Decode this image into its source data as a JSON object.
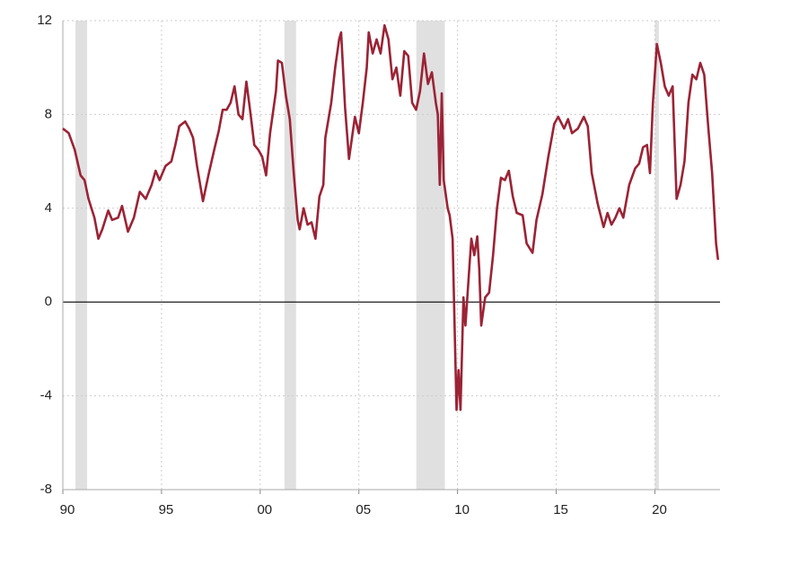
{
  "chart_data": {
    "type": "line",
    "x": [
      1990.0,
      1990.3,
      1990.6,
      1990.9,
      1991.1,
      1991.3,
      1991.6,
      1991.8,
      1992.0,
      1992.3,
      1992.5,
      1992.8,
      1993.0,
      1993.3,
      1993.6,
      1993.9,
      1994.2,
      1994.5,
      1994.7,
      1994.9,
      1995.2,
      1995.5,
      1995.7,
      1995.9,
      1996.2,
      1996.4,
      1996.6,
      1996.8,
      1997.1,
      1997.4,
      1997.7,
      1997.9,
      1998.1,
      1998.3,
      1998.5,
      1998.7,
      1998.9,
      1999.1,
      1999.3,
      1999.5,
      1999.7,
      1999.9,
      2000.1,
      2000.3,
      2000.5,
      2000.8,
      2000.9,
      2001.1,
      2001.3,
      2001.5,
      2001.7,
      2001.9,
      2002.0,
      2002.2,
      2002.4,
      2002.6,
      2002.8,
      2003.0,
      2003.2,
      2003.3,
      2003.6,
      2003.8,
      2004.0,
      2004.1,
      2004.3,
      2004.5,
      2004.8,
      2005.0,
      2005.2,
      2005.4,
      2005.5,
      2005.7,
      2005.9,
      2006.1,
      2006.3,
      2006.5,
      2006.7,
      2006.9,
      2007.1,
      2007.3,
      2007.5,
      2007.7,
      2007.9,
      2008.1,
      2008.3,
      2008.5,
      2008.7,
      2008.9,
      2009.0,
      2009.1,
      2009.2,
      2009.3,
      2009.5,
      2009.6,
      2009.75,
      2009.85,
      2009.95,
      2010.05,
      2010.15,
      2010.3,
      2010.4,
      2010.6,
      2010.7,
      2010.85,
      2011.0,
      2011.1,
      2011.2,
      2011.4,
      2011.6,
      2011.8,
      2012.0,
      2012.2,
      2012.4,
      2012.6,
      2012.8,
      2013.0,
      2013.3,
      2013.5,
      2013.8,
      2014.0,
      2014.3,
      2014.6,
      2014.9,
      2015.1,
      2015.4,
      2015.6,
      2015.8,
      2016.1,
      2016.4,
      2016.6,
      2016.8,
      2017.1,
      2017.4,
      2017.6,
      2017.8,
      2018.0,
      2018.2,
      2018.4,
      2018.7,
      2019.0,
      2019.2,
      2019.4,
      2019.6,
      2019.75,
      2019.9,
      2020.1,
      2020.3,
      2020.5,
      2020.7,
      2020.9,
      2021.1,
      2021.3,
      2021.5,
      2021.7,
      2021.9,
      2022.1,
      2022.3,
      2022.5,
      2022.7,
      2022.9,
      2023.1,
      2023.2
    ],
    "values": [
      7.4,
      7.2,
      6.5,
      5.4,
      5.2,
      4.4,
      3.6,
      2.7,
      3.1,
      3.9,
      3.5,
      3.6,
      4.1,
      3.0,
      3.6,
      4.7,
      4.4,
      5.0,
      5.6,
      5.2,
      5.8,
      6.0,
      6.7,
      7.5,
      7.7,
      7.4,
      7.0,
      5.8,
      4.3,
      5.5,
      6.6,
      7.3,
      8.2,
      8.2,
      8.5,
      9.2,
      8.0,
      7.8,
      9.4,
      8.1,
      6.7,
      6.5,
      6.2,
      5.4,
      7.2,
      9.0,
      10.3,
      10.2,
      8.8,
      7.8,
      5.5,
      3.5,
      3.1,
      4.0,
      3.3,
      3.4,
      2.7,
      4.5,
      5.0,
      7.0,
      8.5,
      10.0,
      11.2,
      11.5,
      8.3,
      6.1,
      7.9,
      7.2,
      8.5,
      10.0,
      11.5,
      10.6,
      11.2,
      10.6,
      11.8,
      11.2,
      9.5,
      10.0,
      8.8,
      10.7,
      10.5,
      8.5,
      8.2,
      9.0,
      10.6,
      9.3,
      9.8,
      8.5,
      8.0,
      5.0,
      8.9,
      5.2,
      4.0,
      3.7,
      2.7,
      -1.0,
      -4.6,
      -2.9,
      -4.6,
      0.2,
      -1.0,
      1.5,
      2.7,
      2.0,
      2.8,
      1.4,
      -1.0,
      0.2,
      0.4,
      2.0,
      4.0,
      5.3,
      5.2,
      5.6,
      4.5,
      3.8,
      3.7,
      2.5,
      2.1,
      3.5,
      4.6,
      6.2,
      7.6,
      7.9,
      7.4,
      7.8,
      7.2,
      7.4,
      7.9,
      7.5,
      5.5,
      4.2,
      3.2,
      3.8,
      3.3,
      3.6,
      4.0,
      3.6,
      5.0,
      5.7,
      5.9,
      6.6,
      6.7,
      5.5,
      8.5,
      11.0,
      10.2,
      9.2,
      8.8,
      9.2,
      4.4,
      5.0,
      6.0,
      8.5,
      9.7,
      9.5,
      10.2,
      9.7,
      7.5,
      5.5,
      2.5,
      1.8
    ],
    "color": "#9b2335",
    "shaded_periods": [
      [
        1990.64,
        1991.23
      ],
      [
        2001.23,
        2001.82
      ],
      [
        2007.91,
        2009.36
      ],
      [
        2020.0,
        2020.2
      ]
    ],
    "shade_color": "#e0e0e0",
    "xlim": [
      1990,
      2023.3
    ],
    "xticks": [
      {
        "value": 1990,
        "label": "90"
      },
      {
        "value": 1995,
        "label": "95"
      },
      {
        "value": 2000,
        "label": "00"
      },
      {
        "value": 2005,
        "label": "05"
      },
      {
        "value": 2010,
        "label": "10"
      },
      {
        "value": 2015,
        "label": "15"
      },
      {
        "value": 2020,
        "label": "20"
      }
    ],
    "ylim": [
      -8,
      12
    ],
    "yticks": [
      -8,
      -4,
      0,
      4,
      8,
      12
    ],
    "grid": true
  }
}
